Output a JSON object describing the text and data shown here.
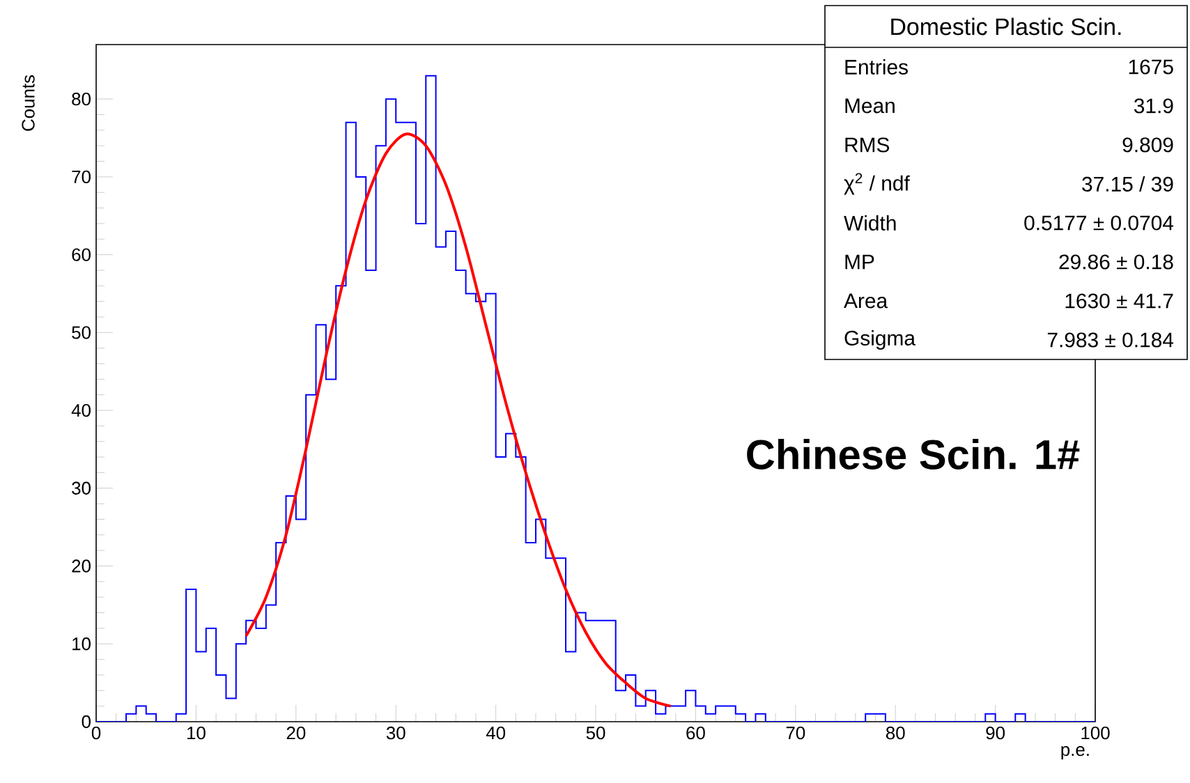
{
  "chart_data": {
    "type": "histogram",
    "xlabel": "p.e.",
    "ylabel": "Counts",
    "bins": [
      0,
      1,
      2,
      3,
      4,
      5,
      6,
      7,
      8,
      9,
      10,
      11,
      12,
      13,
      14,
      15,
      16,
      17,
      18,
      19,
      20,
      21,
      22,
      23,
      24,
      25,
      26,
      27,
      28,
      29,
      30,
      31,
      32,
      33,
      34,
      35,
      36,
      37,
      38,
      39,
      40,
      41,
      42,
      43,
      44,
      45,
      46,
      47,
      48,
      49,
      50,
      51,
      52,
      53,
      54,
      55,
      56,
      57,
      58,
      59,
      60,
      61,
      62,
      63,
      64,
      65,
      66,
      67,
      68,
      69,
      70,
      71,
      72,
      73,
      74,
      75,
      76,
      77,
      78,
      79,
      80,
      81,
      82,
      83,
      84,
      85,
      86,
      87,
      88,
      89,
      90,
      91,
      92,
      93,
      94,
      95,
      96,
      97,
      98,
      99,
      100
    ],
    "color": "#0000ff",
    "values": [
      0,
      0,
      0,
      1,
      2,
      1,
      0,
      0,
      1,
      17,
      9,
      12,
      6,
      3,
      10,
      13,
      12,
      15,
      23,
      29,
      26,
      42,
      51,
      44,
      56,
      77,
      70,
      58,
      74,
      80,
      77,
      77,
      64,
      83,
      61,
      63,
      58,
      55,
      54,
      55,
      34,
      37,
      34,
      23,
      26,
      21,
      21,
      9,
      14,
      13,
      13,
      13,
      4,
      6,
      2,
      4,
      1,
      2,
      2,
      4,
      2,
      1,
      2,
      2,
      1,
      0,
      1,
      0,
      0,
      0,
      0,
      0,
      0,
      0,
      0,
      0,
      0,
      1,
      1,
      0,
      0,
      0,
      0,
      0,
      0,
      0,
      0,
      0,
      0,
      1,
      0,
      0,
      1,
      0,
      0,
      0,
      0,
      0,
      0,
      0
    ],
    "series": [
      {
        "type": "line",
        "color": "#ff0000",
        "x": [
          15,
          17,
          19,
          21,
          23,
          25,
          27,
          29,
          31,
          33,
          35,
          37,
          39,
          41,
          43,
          45,
          47,
          49,
          51,
          53,
          55,
          57.5
        ],
        "values": [
          11,
          16,
          24,
          35,
          47,
          58,
          67,
          73,
          75.5,
          74,
          69,
          61,
          51,
          41,
          32,
          24,
          17,
          11.5,
          7.5,
          5,
          3,
          2
        ]
      }
    ],
    "xlim": [
      0,
      100
    ],
    "ylim": [
      0,
      87
    ],
    "xticks": [
      0,
      10,
      20,
      30,
      40,
      50,
      60,
      70,
      80,
      90,
      100
    ],
    "yticks": [
      0,
      10,
      20,
      30,
      40,
      50,
      60,
      70,
      80
    ],
    "grid": false,
    "annotations": [
      "Domestic Plastic Scin.",
      "Entries",
      "1675",
      "Mean",
      "31.9",
      "RMS",
      "9.809",
      "χ$^{2}$ / ndf",
      "37.15 / 39",
      "Width",
      "0.5177 ± 0.0704",
      "MP",
      "29.86 ± 0.18",
      "Area",
      "1630 ± 41.7",
      "Gsigma",
      "7.983 ± 0.184",
      "**Chinese Scin. 1#**"
    ]
  }
}
